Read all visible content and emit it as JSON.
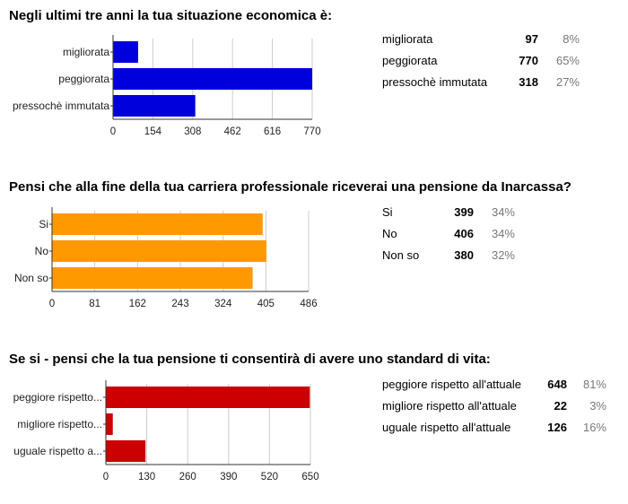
{
  "chart_data": [
    {
      "type": "bar",
      "orientation": "horizontal",
      "title": "Negli ultimi tre anni la tua situazione economica è:",
      "categories": [
        "migliorata",
        "peggiorata",
        "pressochè immutata"
      ],
      "values": [
        97,
        770,
        318
      ],
      "xlim": [
        0,
        770
      ],
      "ticks": [
        0,
        154,
        308,
        462,
        616,
        770
      ],
      "color": "#0000dd",
      "summary": [
        {
          "label": "migliorata",
          "count": "97",
          "pct": "8%"
        },
        {
          "label": "peggiorata",
          "count": "770",
          "pct": "65%"
        },
        {
          "label": "pressochè immutata",
          "count": "318",
          "pct": "27%"
        }
      ]
    },
    {
      "type": "bar",
      "orientation": "horizontal",
      "title": "Pensi che alla fine della tua carriera professionale riceverai una pensione da Inarcassa?",
      "categories": [
        "Si",
        "No",
        "Non so"
      ],
      "values": [
        399,
        406,
        380
      ],
      "xlim": [
        0,
        486
      ],
      "ticks": [
        0,
        81,
        162,
        243,
        324,
        405,
        486
      ],
      "color": "#ff9900",
      "summary": [
        {
          "label": "Si",
          "count": "399",
          "pct": "34%"
        },
        {
          "label": "No",
          "count": "406",
          "pct": "34%"
        },
        {
          "label": "Non so",
          "count": "380",
          "pct": "32%"
        }
      ]
    },
    {
      "type": "bar",
      "orientation": "horizontal",
      "title": "Se si - pensi che la tua pensione ti consentirà di avere uno standard di vita:",
      "categories": [
        "peggiore rispetto...",
        "migliore rispetto...",
        "uguale rispetto a..."
      ],
      "values": [
        648,
        22,
        126
      ],
      "xlim": [
        0,
        650
      ],
      "ticks": [
        0,
        130,
        260,
        390,
        520,
        650
      ],
      "color": "#cc0000",
      "summary": [
        {
          "label": "peggiore rispetto all'attuale",
          "count": "648",
          "pct": "81%"
        },
        {
          "label": "migliore rispetto all'attuale",
          "count": "22",
          "pct": "3%"
        },
        {
          "label": "uguale rispetto all'attuale",
          "count": "126",
          "pct": "16%"
        }
      ]
    }
  ]
}
